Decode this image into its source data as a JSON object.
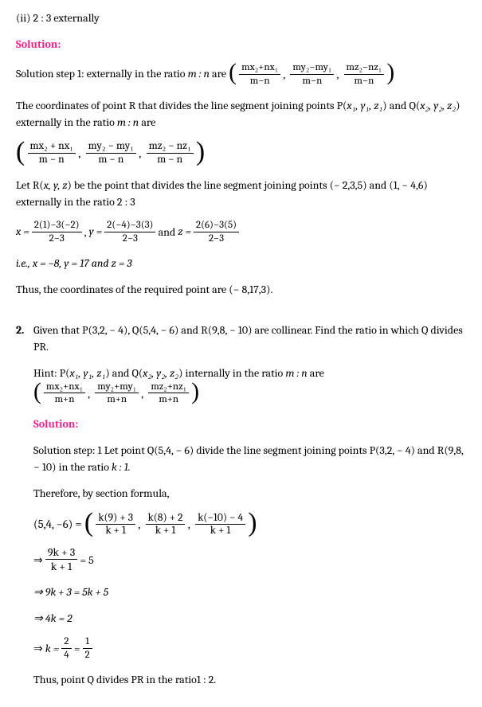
{
  "part_ii_title": "(ii) 2 : 3 externally",
  "solution_label": "Solution:",
  "sec1": {
    "step1_prefix": "Solution step 1: externally in the ratio ",
    "mn": "m : n",
    "are": " are ",
    "ext_formula": {
      "t1_num": "mx₂+nx₁",
      "t1_den": "m−n",
      "t2_num": "my₂−my₁",
      "t2_den": "m−n",
      "t3_num": "mz₂−nz₁",
      "t3_den": "m−n"
    },
    "p2_a": "The coordinates of point R that divides the line segment joining points P(",
    "p2_p": "x₁, y₁, z₁",
    "p2_b": ") and Q(",
    "p2_q": "x₂, y₂, z₂",
    "p2_c": ") externally in the ratio ",
    "p2_d": " are",
    "big_formula": {
      "t1_num": "mx₂ + nx₁",
      "t1_den": "m − n",
      "t2_num": "my₂ − my₁",
      "t2_den": "m − n",
      "t3_num": "mz₂ − nz₁",
      "t3_den": "m − n"
    },
    "p3_a": "Let R(",
    "p3_xyz": "x, y, z",
    "p3_b": ") be the point that divides the line segment joining points (− 2,3,5) and (1, − 4,6) externally in the ratio 2 : 3",
    "xyz_calc": {
      "x_lhs": "x = ",
      "x_num": "2(1)−3(−2)",
      "x_den": "2−3",
      "y_lhs": "y = ",
      "y_num": "2(−4)−3(3)",
      "y_den": "2−3",
      "and_word": " and ",
      "z_lhs": "z = ",
      "z_num": "2(6)−3(5)",
      "z_den": "2−3",
      "comma_sep": " , "
    },
    "p4": "i.e., x = −8, y = 17 and z = 3",
    "p5": "Thus, the coordinates of the required point are (− 8,17,3)."
  },
  "q2": {
    "number": "2.",
    "text_a": "Given that P(3,2, − 4), Q(5,4, − 6) and R(9,8, − 10) are collinear. Find the ratio in which Q divides PR.",
    "hint_a": "Hint: P(",
    "hint_p": "x₁, y₁, z₁",
    "hint_b": ") and Q(",
    "hint_q": "x₂, y₂, z₂",
    "hint_c": ") internally in the ratio ",
    "hint_mn": "m : n",
    "hint_d": " are",
    "int_formula": {
      "t1_num": "mx₂+nx₁",
      "t1_den": "m+n",
      "t2_num": "my₂+my₁",
      "t2_den": "m+n",
      "t3_num": "mz₂+nz₁",
      "t3_den": "m+n"
    },
    "sol_p1_a": "Solution step: 1 Let point Q(5,4, − 6) divide the line segment joining points P(3,2, − 4) and R(9,8, − 10) in the ratio ",
    "sol_p1_k": "k : 1.",
    "sol_p2": "Therefore, by section formula,",
    "big_eq_lhs": "(5,4, −6) = ",
    "big_eq": {
      "t1_num": "k(9) + 3",
      "t1_den": "k + 1",
      "t2_num": "k(8) + 2",
      "t2_den": "k + 1",
      "t3_num": "k(−10) − 4",
      "t3_den": "k + 1"
    },
    "arrow": "⇒ ",
    "step_frac": {
      "num": "9k + 3",
      "den": "k + 1",
      "tail": " = 5"
    },
    "step_a": "⇒ 9k + 3 = 5k + 5",
    "step_b": "⇒ 4k = 2",
    "step_c_lhs": "k = ",
    "step_c_f1": {
      "num": "2",
      "den": "4"
    },
    "eq_sign": " = ",
    "step_c_f2": {
      "num": "1",
      "den": "2"
    },
    "conclusion": "Thus, point Q divides PR in the ratio1 : 2."
  }
}
